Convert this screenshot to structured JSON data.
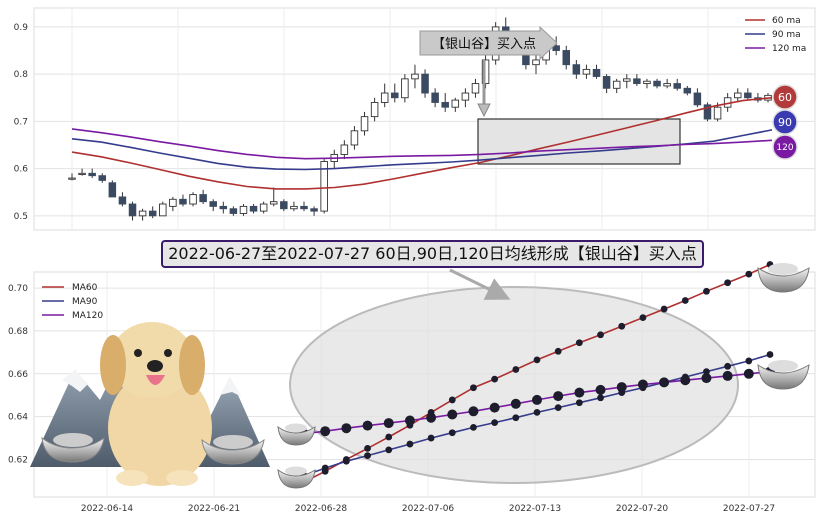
{
  "title": "2022-06-27至2022-07-27 60日,90日,120日均线形成【银山谷】买入点",
  "chart_data": [
    {
      "type": "candlestick",
      "yticks": [
        0.5,
        0.6,
        0.7,
        0.8,
        0.9
      ],
      "ylim": [
        0.47,
        0.94
      ],
      "annotation": "【银山谷】买入点",
      "legend": [
        "60 ma",
        "90 ma",
        "120 ma"
      ],
      "badges": [
        "60",
        "90",
        "120"
      ],
      "ohlc": [
        [
          0.58,
          0.59,
          0.575,
          0.58
        ],
        [
          0.59,
          0.6,
          0.585,
          0.59
        ],
        [
          0.59,
          0.6,
          0.58,
          0.585
        ],
        [
          0.585,
          0.59,
          0.57,
          0.575
        ],
        [
          0.57,
          0.575,
          0.54,
          0.54
        ],
        [
          0.54,
          0.55,
          0.52,
          0.525
        ],
        [
          0.525,
          0.53,
          0.49,
          0.5
        ],
        [
          0.5,
          0.515,
          0.49,
          0.51
        ],
        [
          0.51,
          0.52,
          0.495,
          0.5
        ],
        [
          0.5,
          0.53,
          0.5,
          0.525
        ],
        [
          0.52,
          0.54,
          0.51,
          0.535
        ],
        [
          0.535,
          0.545,
          0.52,
          0.525
        ],
        [
          0.525,
          0.55,
          0.52,
          0.545
        ],
        [
          0.545,
          0.555,
          0.525,
          0.53
        ],
        [
          0.53,
          0.535,
          0.51,
          0.52
        ],
        [
          0.52,
          0.53,
          0.505,
          0.515
        ],
        [
          0.515,
          0.52,
          0.5,
          0.505
        ],
        [
          0.505,
          0.525,
          0.5,
          0.52
        ],
        [
          0.52,
          0.525,
          0.505,
          0.51
        ],
        [
          0.51,
          0.53,
          0.505,
          0.525
        ],
        [
          0.525,
          0.56,
          0.52,
          0.53
        ],
        [
          0.53,
          0.535,
          0.51,
          0.515
        ],
        [
          0.515,
          0.53,
          0.51,
          0.52
        ],
        [
          0.52,
          0.53,
          0.51,
          0.515
        ],
        [
          0.515,
          0.52,
          0.5,
          0.51
        ],
        [
          0.51,
          0.62,
          0.505,
          0.615
        ],
        [
          0.615,
          0.64,
          0.6,
          0.63
        ],
        [
          0.63,
          0.66,
          0.62,
          0.65
        ],
        [
          0.65,
          0.69,
          0.64,
          0.68
        ],
        [
          0.68,
          0.72,
          0.67,
          0.71
        ],
        [
          0.71,
          0.75,
          0.7,
          0.74
        ],
        [
          0.74,
          0.78,
          0.73,
          0.76
        ],
        [
          0.76,
          0.78,
          0.74,
          0.75
        ],
        [
          0.75,
          0.8,
          0.74,
          0.79
        ],
        [
          0.79,
          0.82,
          0.77,
          0.8
        ],
        [
          0.8,
          0.81,
          0.75,
          0.76
        ],
        [
          0.76,
          0.77,
          0.73,
          0.74
        ],
        [
          0.74,
          0.76,
          0.72,
          0.73
        ],
        [
          0.73,
          0.75,
          0.72,
          0.745
        ],
        [
          0.745,
          0.77,
          0.73,
          0.76
        ],
        [
          0.76,
          0.79,
          0.75,
          0.78
        ],
        [
          0.78,
          0.84,
          0.77,
          0.83
        ],
        [
          0.83,
          0.91,
          0.82,
          0.9
        ],
        [
          0.9,
          0.92,
          0.86,
          0.87
        ],
        [
          0.87,
          0.89,
          0.84,
          0.85
        ],
        [
          0.85,
          0.86,
          0.81,
          0.82
        ],
        [
          0.82,
          0.84,
          0.8,
          0.83
        ],
        [
          0.83,
          0.87,
          0.82,
          0.86
        ],
        [
          0.86,
          0.88,
          0.84,
          0.85
        ],
        [
          0.85,
          0.86,
          0.81,
          0.82
        ],
        [
          0.82,
          0.83,
          0.79,
          0.8
        ],
        [
          0.8,
          0.82,
          0.79,
          0.81
        ],
        [
          0.81,
          0.82,
          0.79,
          0.795
        ],
        [
          0.795,
          0.8,
          0.76,
          0.77
        ],
        [
          0.77,
          0.79,
          0.76,
          0.785
        ],
        [
          0.785,
          0.8,
          0.77,
          0.79
        ],
        [
          0.79,
          0.8,
          0.775,
          0.78
        ],
        [
          0.78,
          0.79,
          0.77,
          0.785
        ],
        [
          0.785,
          0.79,
          0.77,
          0.775
        ],
        [
          0.775,
          0.79,
          0.77,
          0.78
        ],
        [
          0.78,
          0.79,
          0.765,
          0.77
        ],
        [
          0.77,
          0.775,
          0.755,
          0.76
        ],
        [
          0.76,
          0.77,
          0.73,
          0.735
        ],
        [
          0.735,
          0.74,
          0.7,
          0.705
        ],
        [
          0.705,
          0.74,
          0.7,
          0.73
        ],
        [
          0.73,
          0.76,
          0.72,
          0.75
        ],
        [
          0.75,
          0.77,
          0.74,
          0.76
        ],
        [
          0.76,
          0.77,
          0.745,
          0.75
        ],
        [
          0.75,
          0.76,
          0.74,
          0.745
        ],
        [
          0.745,
          0.76,
          0.74,
          0.755
        ]
      ],
      "ma60": [
        0.635,
        0.625,
        0.612,
        0.598,
        0.584,
        0.572,
        0.562,
        0.557,
        0.557,
        0.56,
        0.567,
        0.578,
        0.59,
        0.602,
        0.613,
        0.627,
        0.642,
        0.656,
        0.671,
        0.686,
        0.701,
        0.717,
        0.732,
        0.744,
        0.75
      ],
      "ma90": [
        0.663,
        0.656,
        0.645,
        0.633,
        0.622,
        0.611,
        0.603,
        0.599,
        0.598,
        0.6,
        0.604,
        0.608,
        0.611,
        0.614,
        0.618,
        0.623,
        0.628,
        0.633,
        0.637,
        0.642,
        0.647,
        0.652,
        0.658,
        0.67,
        0.682
      ],
      "ma120": [
        0.684,
        0.676,
        0.667,
        0.657,
        0.648,
        0.638,
        0.63,
        0.624,
        0.621,
        0.622,
        0.624,
        0.626,
        0.627,
        0.628,
        0.63,
        0.633,
        0.637,
        0.64,
        0.643,
        0.646,
        0.648,
        0.651,
        0.653,
        0.656,
        0.66
      ]
    },
    {
      "type": "line",
      "x": [
        "2022-06-27",
        "2022-06-28",
        "2022-06-29",
        "2022-06-30",
        "2022-07-01",
        "2022-07-04",
        "2022-07-05",
        "2022-07-06",
        "2022-07-07",
        "2022-07-08",
        "2022-07-11",
        "2022-07-12",
        "2022-07-13",
        "2022-07-14",
        "2022-07-15",
        "2022-07-18",
        "2022-07-19",
        "2022-07-20",
        "2022-07-21",
        "2022-07-22",
        "2022-07-25",
        "2022-07-26",
        "2022-07-27"
      ],
      "xticks": [
        "2022-06-14",
        "2022-06-21",
        "2022-06-28",
        "2022-07-06",
        "2022-07-13",
        "2022-07-20",
        "2022-07-27"
      ],
      "yticks": [
        0.62,
        0.64,
        0.66,
        0.68,
        0.7
      ],
      "ylim": [
        0.6025,
        0.7075
      ],
      "series": [
        {
          "name": "MA60",
          "color": "#b03030",
          "values": [
            0.6095,
            0.6145,
            0.62,
            0.6252,
            0.6305,
            0.636,
            0.642,
            0.6478,
            0.6535,
            0.6575,
            0.662,
            0.6665,
            0.6705,
            0.6745,
            0.6782,
            0.6822,
            0.6862,
            0.6902,
            0.6942,
            0.6985,
            0.7025,
            0.7065,
            0.711
          ]
        },
        {
          "name": "MA90",
          "color": "#353c8c",
          "values": [
            0.6125,
            0.616,
            0.6192,
            0.6218,
            0.6245,
            0.6272,
            0.63,
            0.6325,
            0.635,
            0.6372,
            0.6395,
            0.642,
            0.6442,
            0.6465,
            0.6488,
            0.6512,
            0.6535,
            0.656,
            0.6585,
            0.661,
            0.6635,
            0.666,
            0.669
          ]
        },
        {
          "name": "MA120",
          "color": "#7a1aa3",
          "values": [
            0.632,
            0.6332,
            0.6346,
            0.6358,
            0.637,
            0.6382,
            0.6395,
            0.641,
            0.6425,
            0.6442,
            0.646,
            0.6478,
            0.6496,
            0.6512,
            0.6525,
            0.6538,
            0.655,
            0.656,
            0.657,
            0.658,
            0.659,
            0.66,
            0.661
          ]
        }
      ]
    }
  ]
}
